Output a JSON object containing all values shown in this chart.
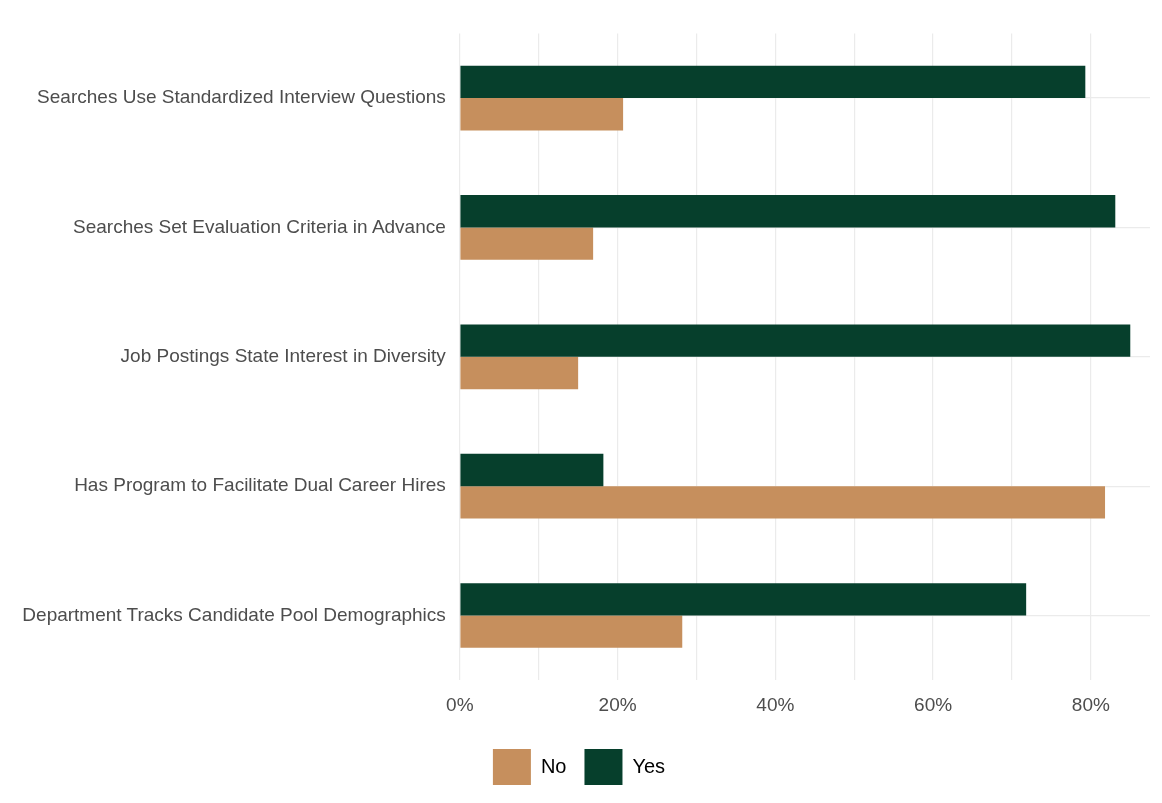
{
  "chart_data": {
    "type": "bar",
    "orientation": "horizontal",
    "categories": [
      "Searches Use Standardized Interview Questions",
      "Searches Set Evaluation Criteria in Advance",
      "Job Postings State Interest in Diversity",
      "Has Program to Facilitate Dual Career Hires",
      "Department Tracks Candidate Pool Demographics"
    ],
    "series": [
      {
        "name": "Yes",
        "color": "#063f2c",
        "values": [
          79.3,
          83.1,
          85,
          18.2,
          71.8
        ]
      },
      {
        "name": "No",
        "color": "#c68f5d",
        "values": [
          20.7,
          16.9,
          15,
          81.8,
          28.2
        ]
      }
    ],
    "xlim": [
      0,
      87.5
    ],
    "xticks": [
      {
        "value": 0,
        "label": "0%"
      },
      {
        "value": 10,
        "label": null
      },
      {
        "value": 20,
        "label": "20%"
      },
      {
        "value": 30,
        "label": null
      },
      {
        "value": 40,
        "label": "40%"
      },
      {
        "value": 50,
        "label": null
      },
      {
        "value": 60,
        "label": "60%"
      },
      {
        "value": 70,
        "label": null
      },
      {
        "value": 80,
        "label": "80%"
      }
    ],
    "grid": true,
    "legend": "bottom"
  }
}
